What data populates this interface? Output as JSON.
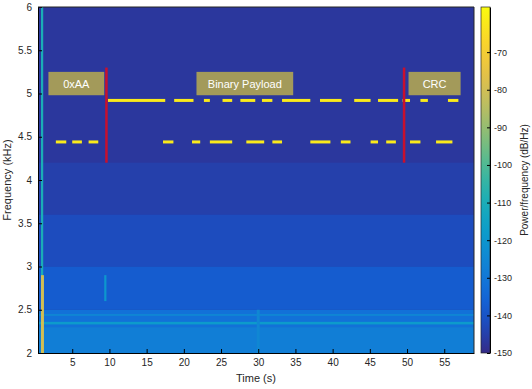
{
  "chart_data": {
    "type": "spectrogram",
    "x_label": "Time (s)",
    "y_label": "Frequency (kHz)",
    "xlim": [
      0.4,
      59
    ],
    "ylim": [
      2,
      6
    ],
    "xticks": [
      5,
      10,
      15,
      20,
      25,
      30,
      35,
      40,
      45,
      50,
      55
    ],
    "yticks": [
      2,
      2.5,
      3,
      3.5,
      4,
      4.5,
      5,
      5.5,
      6
    ],
    "colorbar": {
      "label": "Power/frequency (dB/Hz)",
      "clim": [
        -150,
        -58
      ],
      "ticks": [
        -70,
        -80,
        -90,
        -100,
        -110,
        -120,
        -130,
        -140,
        -150
      ]
    },
    "background_level": -147,
    "noise_regions": [
      {
        "x": [
          0.4,
          59
        ],
        "y": [
          3.6,
          4.2
        ],
        "level": -145
      },
      {
        "x": [
          0.4,
          59
        ],
        "y": [
          3.0,
          3.6
        ],
        "level": -142
      },
      {
        "x": [
          0.4,
          59
        ],
        "y": [
          2.5,
          3.0
        ],
        "level": -138
      },
      {
        "x": [
          0.4,
          59
        ],
        "y": [
          2.3,
          2.5
        ],
        "level": -132
      },
      {
        "x": [
          0.4,
          59
        ],
        "y": [
          2.0,
          2.3
        ],
        "level": -128
      },
      {
        "x": [
          0.4,
          59
        ],
        "y": [
          2.33,
          2.36
        ],
        "level": -118
      },
      {
        "x": [
          0.4,
          59
        ],
        "y": [
          2.43,
          2.45
        ],
        "level": -125
      },
      {
        "x": [
          0.8,
          1.1
        ],
        "y": [
          2.0,
          6.0
        ],
        "level": -110
      },
      {
        "x": [
          0.8,
          1.2
        ],
        "y": [
          2.0,
          2.9
        ],
        "level": -80
      },
      {
        "x": [
          9.3,
          9.6
        ],
        "y": [
          2.6,
          2.9
        ],
        "level": -120
      },
      {
        "x": [
          29.8,
          30.2
        ],
        "y": [
          2.0,
          2.5
        ],
        "level": -125
      }
    ],
    "tones": [
      {
        "frequency": 4.92,
        "level": -62,
        "segments": [
          [
            9.8,
            17.5
          ],
          [
            18.7,
            21.3
          ],
          [
            22.7,
            23.5
          ],
          [
            25.2,
            26.5
          ],
          [
            27.6,
            29.6
          ],
          [
            30.5,
            31.9
          ],
          [
            33.2,
            37.0
          ],
          [
            38.3,
            41.2
          ],
          [
            42.9,
            45.1
          ],
          [
            46.1,
            48.8
          ],
          [
            49.4,
            50.4
          ],
          [
            51.8,
            52.8
          ],
          [
            55.5,
            56.9
          ]
        ]
      },
      {
        "frequency": 4.44,
        "level": -62,
        "segments": [
          [
            2.8,
            4.2
          ],
          [
            5.0,
            6.3
          ],
          [
            7.2,
            8.5
          ],
          [
            17.2,
            18.6
          ],
          [
            21.1,
            22.2
          ],
          [
            23.5,
            26.5
          ],
          [
            28.4,
            30.8
          ],
          [
            31.9,
            33.2
          ],
          [
            37.0,
            39.7
          ],
          [
            41.1,
            42.4
          ],
          [
            45.1,
            46.1
          ],
          [
            47.2,
            48.5
          ],
          [
            50.4,
            51.8
          ],
          [
            53.9,
            56.1
          ]
        ]
      }
    ],
    "annotations": [
      {
        "text": "0xAA",
        "x": [
          1.8,
          9.3
        ],
        "y": [
          4.98,
          5.25
        ],
        "color": "#a39a5a"
      },
      {
        "text": "Binary Payload",
        "x": [
          21.7,
          34.7
        ],
        "y": [
          4.98,
          5.25
        ],
        "color": "#a39a5a"
      },
      {
        "text": "CRC",
        "x": [
          50.2,
          57.2
        ],
        "y": [
          4.98,
          5.25
        ],
        "color": "#a39a5a"
      }
    ],
    "dividers": [
      {
        "x": 9.6,
        "y": [
          4.2,
          5.3
        ],
        "color": "#c8102e"
      },
      {
        "x": 49.6,
        "y": [
          4.2,
          5.3
        ],
        "color": "#c8102e"
      }
    ]
  }
}
